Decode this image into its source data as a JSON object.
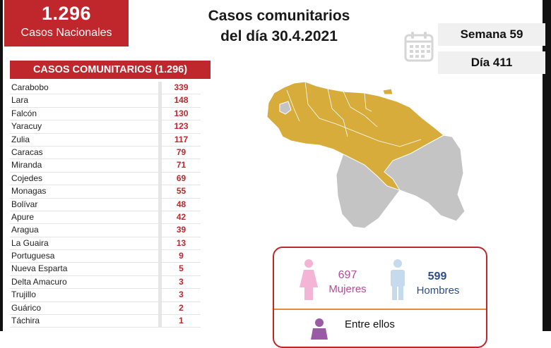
{
  "badge": {
    "number": "1.296",
    "label": "Casos Nacionales"
  },
  "title": {
    "line1": "Casos comunitarios",
    "line2": "del día 30.4.2021"
  },
  "calendar_icon": "calendar-icon",
  "week_label": "Semana 59",
  "day_label": "Día 411",
  "table": {
    "header": "CASOS COMUNITARIOS (1.296)",
    "rows": [
      {
        "name": "Carabobo",
        "value": "339"
      },
      {
        "name": "Lara",
        "value": "148"
      },
      {
        "name": "Falcón",
        "value": "130"
      },
      {
        "name": "Yaracuy",
        "value": "123"
      },
      {
        "name": "Zulia",
        "value": "117"
      },
      {
        "name": "Caracas",
        "value": "79"
      },
      {
        "name": "Miranda",
        "value": "71"
      },
      {
        "name": "Cojedes",
        "value": "69"
      },
      {
        "name": "Monagas",
        "value": "55"
      },
      {
        "name": "Bolívar",
        "value": "48"
      },
      {
        "name": "Apure",
        "value": "42"
      },
      {
        "name": "Aragua",
        "value": "39"
      },
      {
        "name": "La Guaira",
        "value": "13"
      },
      {
        "name": "Portuguesa",
        "value": "9"
      },
      {
        "name": "Nueva Esparta",
        "value": "5"
      },
      {
        "name": "Delta Amacuro",
        "value": "3"
      },
      {
        "name": "Trujillo",
        "value": "3"
      },
      {
        "name": "Guárico",
        "value": "2"
      },
      {
        "name": "Táchira",
        "value": "1"
      }
    ]
  },
  "map": {
    "highlight_color": "#d8ac3a",
    "base_color": "#c4c4c4"
  },
  "gender": {
    "women_count": "697",
    "women_label": "Mujeres",
    "men_count": "599",
    "men_label": "Hombres",
    "between_label": "Entre ellos"
  },
  "colors": {
    "accent_red": "#c0272d",
    "women_pink": "#f4b4d6",
    "men_blue": "#c5daec",
    "divider_orange": "#e58a3a"
  }
}
